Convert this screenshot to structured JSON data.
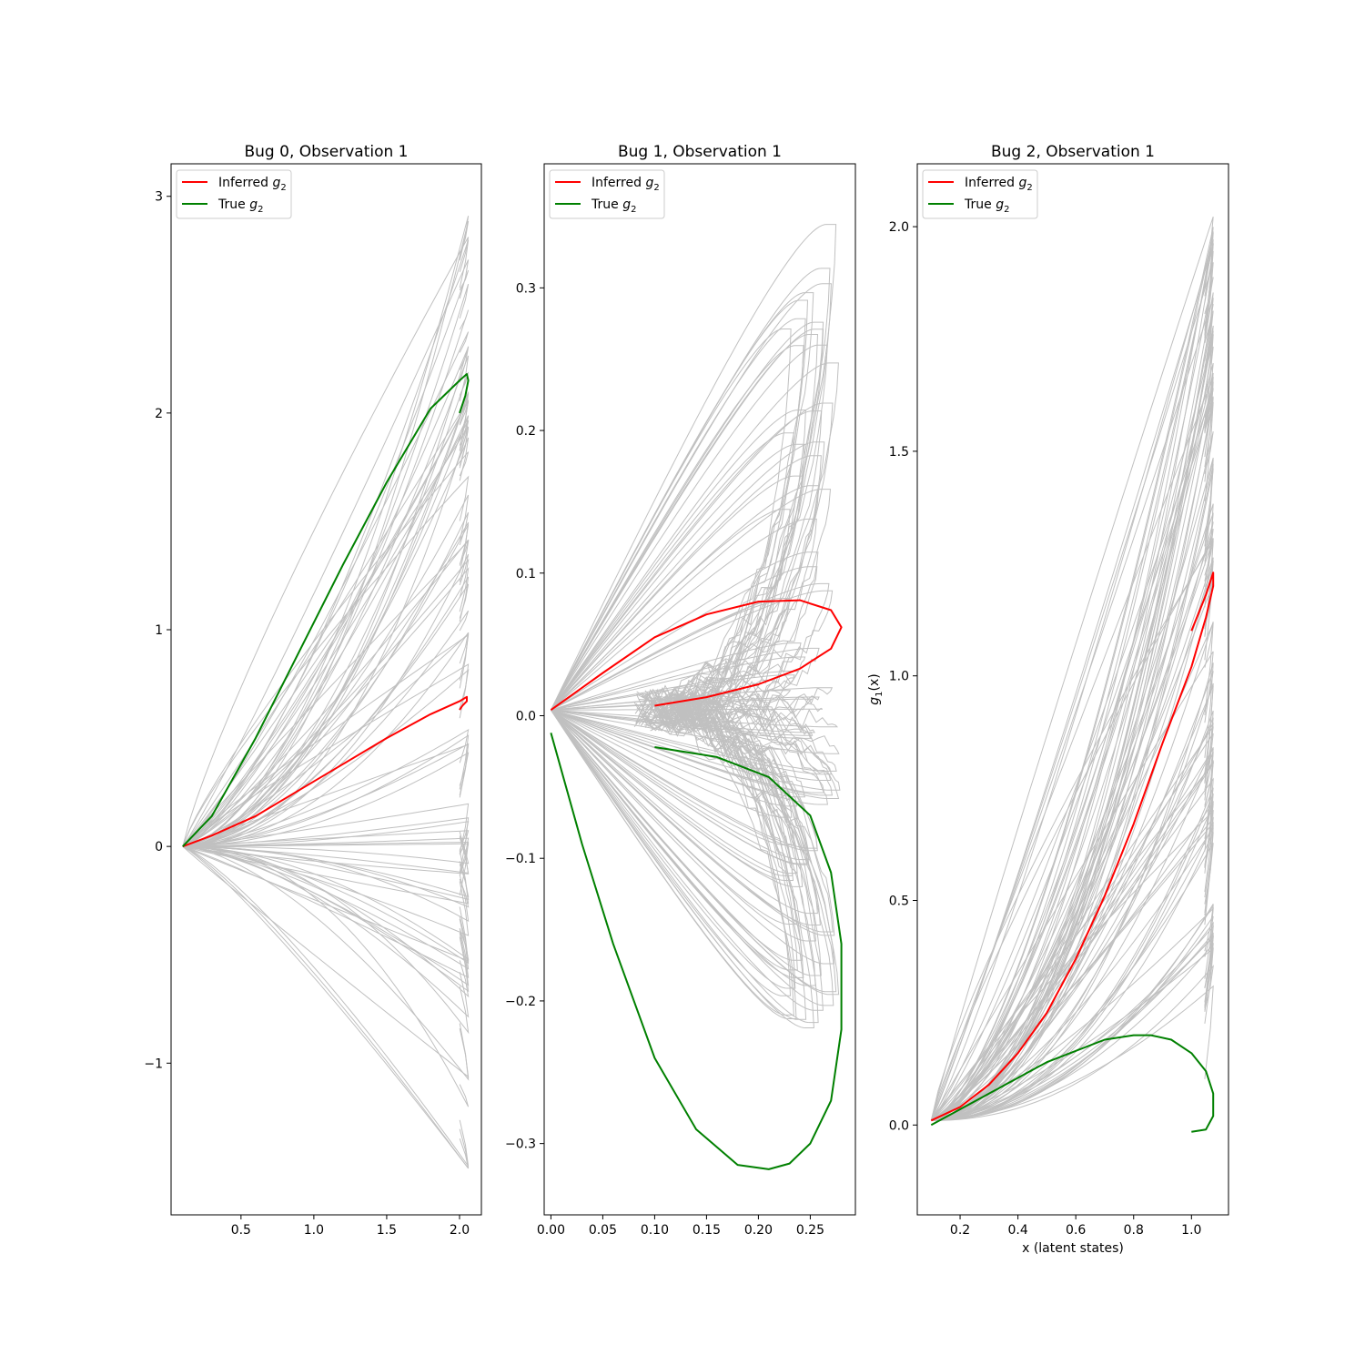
{
  "figure": {
    "background": "#ffffff",
    "colors": {
      "inferred": "#ff0000",
      "true": "#008000",
      "samples": "#c0c0c0"
    }
  },
  "chart_data": [
    {
      "type": "line",
      "title": "Bug 0, Observation 1",
      "xlabel": "",
      "ylabel": "",
      "xlim": [
        0.02,
        2.15
      ],
      "ylim": [
        -1.7,
        3.15
      ],
      "xticks": [
        {
          "v": 0.5,
          "label": "0.5"
        },
        {
          "v": 1.0,
          "label": "1.0"
        },
        {
          "v": 1.5,
          "label": "1.5"
        },
        {
          "v": 2.0,
          "label": "2.0"
        }
      ],
      "yticks": [
        {
          "v": -1,
          "label": "−1"
        },
        {
          "v": 0,
          "label": "0"
        },
        {
          "v": 1,
          "label": "1"
        },
        {
          "v": 2,
          "label": "2"
        },
        {
          "v": 3,
          "label": "3"
        }
      ],
      "legend": {
        "position": "upper-left",
        "entries": [
          {
            "label": "Inferred",
            "sub": "2",
            "color": "#ff0000"
          },
          {
            "label": "True",
            "sub": "2",
            "color": "#008000"
          }
        ]
      },
      "series": [
        {
          "name": "Inferred g2",
          "color": "#ff0000",
          "x": [
            0.1,
            0.3,
            0.6,
            0.9,
            1.2,
            1.5,
            1.8,
            2.0,
            2.05,
            2.05,
            2.02,
            2.0
          ],
          "y": [
            0.0,
            0.05,
            0.14,
            0.26,
            0.38,
            0.5,
            0.61,
            0.67,
            0.69,
            0.67,
            0.65,
            0.63
          ]
        },
        {
          "name": "True g2",
          "color": "#008000",
          "x": [
            0.1,
            0.3,
            0.6,
            0.9,
            1.2,
            1.5,
            1.8,
            2.0,
            2.05,
            2.06,
            2.04,
            2.0
          ],
          "y": [
            0.0,
            0.14,
            0.5,
            0.9,
            1.3,
            1.68,
            2.02,
            2.15,
            2.18,
            2.15,
            2.08,
            2.0
          ]
        }
      ],
      "samples": {
        "count": 80,
        "kind": "hook",
        "x0": 0.1,
        "y0": 0.0,
        "xmax": 2.06,
        "endMin": -1.5,
        "endMax": 2.93,
        "bend": 0.08
      }
    },
    {
      "type": "line",
      "title": "Bug 1, Observation 1",
      "xlabel": "",
      "ylabel": "",
      "xlim": [
        -0.0065,
        0.2935
      ],
      "ylim": [
        -0.35,
        0.387
      ],
      "xticks": [
        {
          "v": 0.0,
          "label": "0.00"
        },
        {
          "v": 0.05,
          "label": "0.05"
        },
        {
          "v": 0.1,
          "label": "0.10"
        },
        {
          "v": 0.15,
          "label": "0.15"
        },
        {
          "v": 0.2,
          "label": "0.20"
        },
        {
          "v": 0.25,
          "label": "0.25"
        }
      ],
      "yticks": [
        {
          "v": -0.3,
          "label": "−0.3"
        },
        {
          "v": -0.2,
          "label": "−0.2"
        },
        {
          "v": -0.1,
          "label": "−0.1"
        },
        {
          "v": 0.0,
          "label": "0.0"
        },
        {
          "v": 0.1,
          "label": "0.1"
        },
        {
          "v": 0.2,
          "label": "0.2"
        },
        {
          "v": 0.3,
          "label": "0.3"
        }
      ],
      "legend": {
        "position": "upper-left",
        "entries": [
          {
            "label": "Inferred",
            "sub": "2",
            "color": "#ff0000"
          },
          {
            "label": "True",
            "sub": "2",
            "color": "#008000"
          }
        ]
      },
      "series": [
        {
          "name": "Inferred g2",
          "color": "#ff0000",
          "x": [
            0.0,
            0.05,
            0.1,
            0.15,
            0.2,
            0.24,
            0.27,
            0.28,
            0.27,
            0.24,
            0.2,
            0.15,
            0.1
          ],
          "y": [
            0.004,
            0.03,
            0.055,
            0.071,
            0.08,
            0.081,
            0.074,
            0.062,
            0.047,
            0.033,
            0.022,
            0.013,
            0.007
          ]
        },
        {
          "name": "True g2",
          "color": "#008000",
          "x": [
            0.0,
            0.03,
            0.06,
            0.1,
            0.14,
            0.18,
            0.21,
            0.23,
            0.25,
            0.27,
            0.28,
            0.28,
            0.27,
            0.25,
            0.21,
            0.16,
            0.1
          ],
          "y": [
            -0.012,
            -0.09,
            -0.16,
            -0.24,
            -0.29,
            -0.315,
            -0.318,
            -0.314,
            -0.3,
            -0.27,
            -0.22,
            -0.16,
            -0.11,
            -0.07,
            -0.043,
            -0.029,
            -0.022
          ]
        }
      ],
      "samples": {
        "count": 90,
        "kind": "loop",
        "x0": 0.0,
        "y0": 0.004,
        "xmax": 0.28,
        "endMin": -0.22,
        "endMax": 0.35,
        "ret": 0.1
      }
    },
    {
      "type": "line",
      "title": "Bug 2, Observation 1",
      "xlabel": "x (latent states)",
      "ylabel": "g1(x)",
      "ylabel_main": "g",
      "ylabel_sub": "1",
      "ylabel_tail": "(x)",
      "xlim": [
        0.052,
        1.128
      ],
      "ylim": [
        -0.2,
        2.14
      ],
      "xticks": [
        {
          "v": 0.2,
          "label": "0.2"
        },
        {
          "v": 0.4,
          "label": "0.4"
        },
        {
          "v": 0.6,
          "label": "0.6"
        },
        {
          "v": 0.8,
          "label": "0.8"
        },
        {
          "v": 1.0,
          "label": "1.0"
        }
      ],
      "yticks": [
        {
          "v": 0.0,
          "label": "0.0"
        },
        {
          "v": 0.5,
          "label": "0.5"
        },
        {
          "v": 1.0,
          "label": "1.0"
        },
        {
          "v": 1.5,
          "label": "1.5"
        },
        {
          "v": 2.0,
          "label": "2.0"
        }
      ],
      "legend": {
        "position": "upper-left",
        "entries": [
          {
            "label": "Inferred",
            "sub": "2",
            "color": "#ff0000"
          },
          {
            "label": "True",
            "sub": "2",
            "color": "#008000"
          }
        ]
      },
      "series": [
        {
          "name": "Inferred g2",
          "color": "#ff0000",
          "x": [
            0.1,
            0.2,
            0.3,
            0.4,
            0.5,
            0.6,
            0.7,
            0.8,
            0.9,
            1.0,
            1.05,
            1.075,
            1.075,
            1.05,
            1.0
          ],
          "y": [
            0.01,
            0.04,
            0.09,
            0.16,
            0.25,
            0.37,
            0.51,
            0.67,
            0.85,
            1.02,
            1.13,
            1.2,
            1.23,
            1.18,
            1.1
          ]
        },
        {
          "name": "True g2",
          "color": "#008000",
          "x": [
            0.1,
            0.3,
            0.5,
            0.7,
            0.8,
            0.86,
            0.93,
            1.0,
            1.05,
            1.075,
            1.075,
            1.05,
            1.0
          ],
          "y": [
            0.0,
            0.07,
            0.14,
            0.19,
            0.2,
            0.2,
            0.19,
            0.16,
            0.12,
            0.07,
            0.02,
            -0.01,
            -0.015
          ]
        }
      ],
      "samples": {
        "count": 90,
        "kind": "hook",
        "x0": 0.1,
        "y0": 0.01,
        "xmax": 1.075,
        "endMin": 0.3,
        "endMax": 2.03,
        "bend": 0.07
      }
    }
  ]
}
